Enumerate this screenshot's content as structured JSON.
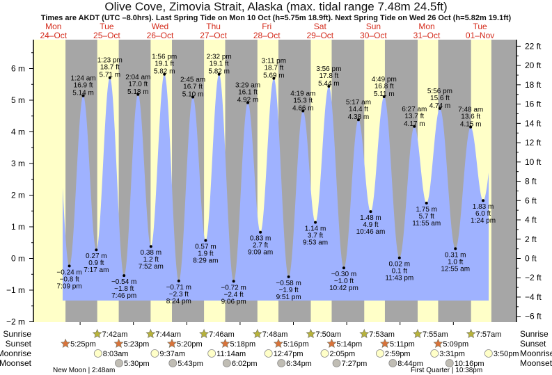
{
  "title": "Olive Cove, Zimovia Strait, Alaska (max. tidal range 7.48m 24.5ft)",
  "subtitle": "Times are AKDT (UTC –8.0hrs). Last Spring Tide on Mon 10 Oct (h=5.75m 18.9ft). Next Spring Tide on Wed 26 Oct (h=5.82m 19.1ft)",
  "colors": {
    "day": "#ffffc8",
    "night": "#a6a6a6",
    "water": "#9fb2ff",
    "day_label": "#d42a1a",
    "sunrise": "#b8b33a",
    "sunset": "#d9733a",
    "moonrise": "#ffffc8",
    "moonset": "#c0bdb4"
  },
  "chart_data": {
    "type": "area",
    "title": "Olive Cove, Zimovia Strait, Alaska (max. tidal range 7.48m 24.5ft)",
    "left_axis": {
      "unit": "m",
      "ylim": [
        -2,
        7
      ],
      "ticks": [
        "6 m",
        "5 m",
        "4 m",
        "3 m",
        "2 m",
        "1 m",
        "0 m",
        "−1 m",
        "−2 m"
      ],
      "tick_values": [
        6,
        5,
        4,
        3,
        2,
        1,
        0,
        -1,
        -2
      ]
    },
    "right_axis": {
      "unit": "ft",
      "ticks": [
        "22 ft",
        "20 ft",
        "18 ft",
        "16 ft",
        "14 ft",
        "12 ft",
        "10 ft",
        "8 ft",
        "6 ft",
        "4 ft",
        "2 ft",
        "0 ft",
        "−2 ft",
        "−4 ft",
        "−6 ft"
      ],
      "tick_values": [
        22,
        20,
        18,
        16,
        14,
        12,
        10,
        8,
        6,
        4,
        2,
        0,
        -2,
        -4,
        -6
      ]
    },
    "days": [
      {
        "dow": "Mon",
        "date": "24–Oct"
      },
      {
        "dow": "Tue",
        "date": "25–Oct"
      },
      {
        "dow": "Wed",
        "date": "26–Oct"
      },
      {
        "dow": "Thu",
        "date": "27–Oct"
      },
      {
        "dow": "Fri",
        "date": "28–Oct"
      },
      {
        "dow": "Sat",
        "date": "29–Oct"
      },
      {
        "dow": "Sun",
        "date": "30–Oct"
      },
      {
        "dow": "Mon",
        "date": "31–Oct"
      },
      {
        "dow": "Tue",
        "date": "01–Nov"
      }
    ],
    "tides": [
      {
        "day": 0,
        "time": "7:09 pm",
        "type": "low",
        "m": "−0.24 m",
        "ft": "−0.8 ft",
        "value": -0.24
      },
      {
        "day": 1,
        "time": "1:24 am",
        "type": "high",
        "m": "5.14 m",
        "ft": "16.9 ft",
        "value": 5.14
      },
      {
        "day": 1,
        "time": "7:17 am",
        "type": "low",
        "m": "0.27 m",
        "ft": "0.9 ft",
        "value": 0.27
      },
      {
        "day": 1,
        "time": "1:23 pm",
        "type": "high",
        "m": "5.71 m",
        "ft": "18.7 ft",
        "value": 5.71
      },
      {
        "day": 1,
        "time": "7:46 pm",
        "type": "low",
        "m": "−0.54 m",
        "ft": "−1.8 ft",
        "value": -0.54
      },
      {
        "day": 2,
        "time": "2:04 am",
        "type": "high",
        "m": "5.18 m",
        "ft": "17.0 ft",
        "value": 5.18
      },
      {
        "day": 2,
        "time": "7:52 am",
        "type": "low",
        "m": "0.38 m",
        "ft": "1.2 ft",
        "value": 0.38
      },
      {
        "day": 2,
        "time": "1:56 pm",
        "type": "high",
        "m": "5.82 m",
        "ft": "19.1 ft",
        "value": 5.82
      },
      {
        "day": 2,
        "time": "8:24 pm",
        "type": "low",
        "m": "−0.71 m",
        "ft": "−2.3 ft",
        "value": -0.71
      },
      {
        "day": 3,
        "time": "2:45 am",
        "type": "high",
        "m": "5.10 m",
        "ft": "16.7 ft",
        "value": 5.1
      },
      {
        "day": 3,
        "time": "8:29 am",
        "type": "low",
        "m": "0.57 m",
        "ft": "1.9 ft",
        "value": 0.57
      },
      {
        "day": 3,
        "time": "2:32 pm",
        "type": "high",
        "m": "5.82 m",
        "ft": "19.1 ft",
        "value": 5.82
      },
      {
        "day": 3,
        "time": "9:06 pm",
        "type": "low",
        "m": "−0.72 m",
        "ft": "−2.4 ft",
        "value": -0.72
      },
      {
        "day": 4,
        "time": "3:29 am",
        "type": "high",
        "m": "4.92 m",
        "ft": "16.1 ft",
        "value": 4.92
      },
      {
        "day": 4,
        "time": "9:09 am",
        "type": "low",
        "m": "0.83 m",
        "ft": "2.7 ft",
        "value": 0.83
      },
      {
        "day": 4,
        "time": "3:11 pm",
        "type": "high",
        "m": "5.69 m",
        "ft": "18.7 ft",
        "value": 5.69
      },
      {
        "day": 4,
        "time": "9:51 pm",
        "type": "low",
        "m": "−0.58 m",
        "ft": "−1.9 ft",
        "value": -0.58
      },
      {
        "day": 5,
        "time": "4:19 am",
        "type": "high",
        "m": "4.66 m",
        "ft": "15.3 ft",
        "value": 4.66
      },
      {
        "day": 5,
        "time": "9:53 am",
        "type": "low",
        "m": "1.14 m",
        "ft": "3.7 ft",
        "value": 1.14
      },
      {
        "day": 5,
        "time": "3:56 pm",
        "type": "high",
        "m": "5.44 m",
        "ft": "17.8 ft",
        "value": 5.44
      },
      {
        "day": 5,
        "time": "10:42 pm",
        "type": "low",
        "m": "−0.30 m",
        "ft": "−1.0 ft",
        "value": -0.3
      },
      {
        "day": 6,
        "time": "5:17 am",
        "type": "high",
        "m": "4.38 m",
        "ft": "14.4 ft",
        "value": 4.38
      },
      {
        "day": 6,
        "time": "10:46 am",
        "type": "low",
        "m": "1.48 m",
        "ft": "4.9 ft",
        "value": 1.48
      },
      {
        "day": 6,
        "time": "4:49 pm",
        "type": "high",
        "m": "5.11 m",
        "ft": "16.8 ft",
        "value": 5.11
      },
      {
        "day": 6,
        "time": "11:43 pm",
        "type": "low",
        "m": "0.02 m",
        "ft": "0.1 ft",
        "value": 0.02
      },
      {
        "day": 7,
        "time": "6:27 am",
        "type": "high",
        "m": "4.17 m",
        "ft": "13.7 ft",
        "value": 4.17
      },
      {
        "day": 7,
        "time": "11:55 am",
        "type": "low",
        "m": "1.75 m",
        "ft": "5.7 ft",
        "value": 1.75
      },
      {
        "day": 7,
        "time": "5:56 pm",
        "type": "high",
        "m": "4.74 m",
        "ft": "15.6 ft",
        "value": 4.74
      },
      {
        "day": 8,
        "time": "12:55 am",
        "type": "low",
        "m": "0.31 m",
        "ft": "1.0 ft",
        "value": 0.31
      },
      {
        "day": 8,
        "time": "7:48 am",
        "type": "high",
        "m": "4.15 m",
        "ft": "13.6 ft",
        "value": 4.15
      },
      {
        "day": 8,
        "time": "1:24 pm",
        "type": "low",
        "m": "1.83 m",
        "ft": "6.0 ft",
        "value": 1.83
      }
    ]
  },
  "astro": {
    "row_labels": {
      "sunrise": "Sunrise",
      "sunset": "Sunset",
      "moonrise": "Moonrise",
      "moonset": "Moonset"
    },
    "sunrise": [
      {
        "day": 1,
        "time": "7:42am"
      },
      {
        "day": 2,
        "time": "7:44am"
      },
      {
        "day": 3,
        "time": "7:46am"
      },
      {
        "day": 4,
        "time": "7:48am"
      },
      {
        "day": 5,
        "time": "7:50am"
      },
      {
        "day": 6,
        "time": "7:53am"
      },
      {
        "day": 7,
        "time": "7:55am"
      },
      {
        "day": 8,
        "time": "7:57am"
      }
    ],
    "sunset": [
      {
        "day": 0,
        "time": "5:25pm"
      },
      {
        "day": 1,
        "time": "5:23pm"
      },
      {
        "day": 2,
        "time": "5:20pm"
      },
      {
        "day": 3,
        "time": "5:18pm"
      },
      {
        "day": 4,
        "time": "5:16pm"
      },
      {
        "day": 5,
        "time": "5:14pm"
      },
      {
        "day": 6,
        "time": "5:11pm"
      },
      {
        "day": 7,
        "time": "5:09pm"
      }
    ],
    "moonrise": [
      {
        "day": 1,
        "time": "8:03am"
      },
      {
        "day": 2,
        "time": "9:37am"
      },
      {
        "day": 3,
        "time": "11:14am"
      },
      {
        "day": 4,
        "time": "12:47pm"
      },
      {
        "day": 5,
        "time": "2:05pm"
      },
      {
        "day": 6,
        "time": "2:59pm"
      },
      {
        "day": 7,
        "time": "3:31pm"
      },
      {
        "day": 8,
        "time": "3:50pm"
      }
    ],
    "moonset": [
      {
        "day": 1,
        "time": "5:30pm"
      },
      {
        "day": 2,
        "time": "5:43pm"
      },
      {
        "day": 3,
        "time": "6:02pm"
      },
      {
        "day": 4,
        "time": "6:34pm"
      },
      {
        "day": 5,
        "time": "7:27pm"
      },
      {
        "day": 6,
        "time": "8:44pm"
      },
      {
        "day": 7,
        "time": "10:16pm"
      }
    ],
    "moon_phases": [
      {
        "label": "New Moon | 2:48am"
      },
      {
        "label": "First Quarter | 10:38pm"
      }
    ]
  }
}
